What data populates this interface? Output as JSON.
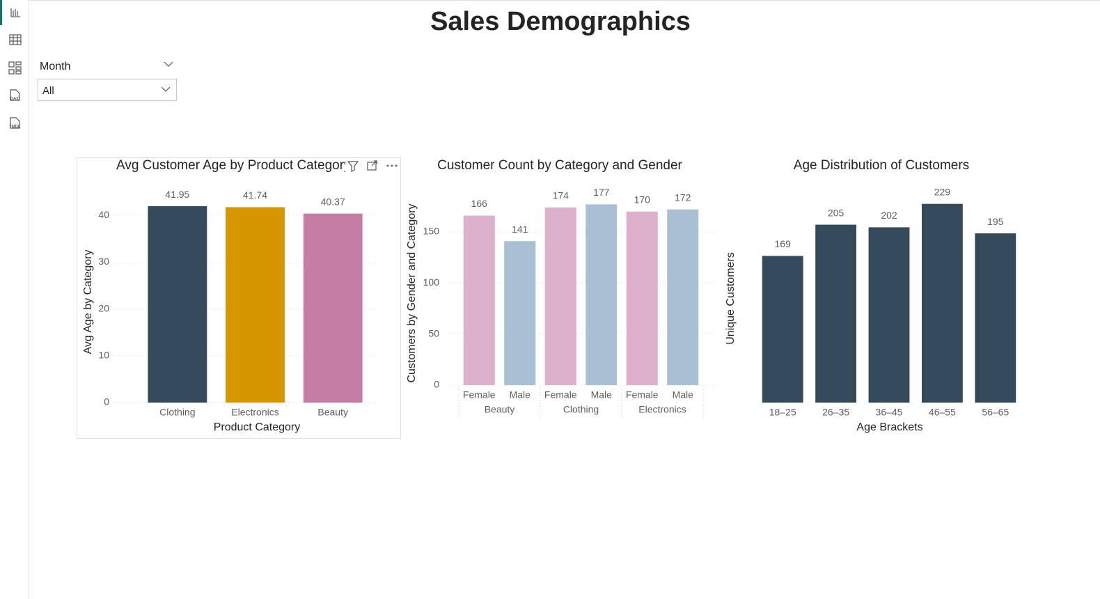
{
  "header": {
    "title": "Sales Demographics"
  },
  "slicer": {
    "label": "Month",
    "value": "All"
  },
  "chart_data": [
    {
      "type": "bar",
      "title": "Avg Customer Age by Product Category",
      "categories": [
        "Clothing",
        "Electronics",
        "Beauty"
      ],
      "values": [
        41.95,
        41.74,
        40.37
      ],
      "colors": [
        "#344a5a",
        "#d59600",
        "#c47ea6"
      ],
      "xlabel": "Product Category",
      "ylabel": "Avg Age by Category",
      "ylim": [
        0,
        43
      ],
      "yticks": [
        0,
        10,
        20,
        30,
        40
      ],
      "grid": true
    },
    {
      "type": "grouped-bar",
      "title": "Customer Count by Category and Gender",
      "categories": [
        "Beauty",
        "Clothing",
        "Electronics"
      ],
      "series": [
        {
          "name": "Female",
          "color": "#ddb0cb",
          "values": [
            166,
            174,
            170
          ]
        },
        {
          "name": "Male",
          "color": "#a9bfd3",
          "values": [
            141,
            177,
            172
          ]
        }
      ],
      "ylabel": "Customers by Gender and Category",
      "ylim": [
        0,
        180
      ],
      "yticks": [
        0,
        50,
        100,
        150
      ],
      "grid": true
    },
    {
      "type": "bar",
      "title": "Age Distribution of Customers",
      "categories": [
        "18–25",
        "26–35",
        "36–45",
        "46–55",
        "56–65"
      ],
      "values": [
        169,
        205,
        202,
        229,
        195
      ],
      "color": "#344a5a",
      "xlabel": "Age Brackets",
      "ylabel": "Unique Customers",
      "ylim": [
        0,
        240
      ],
      "grid": false
    }
  ]
}
